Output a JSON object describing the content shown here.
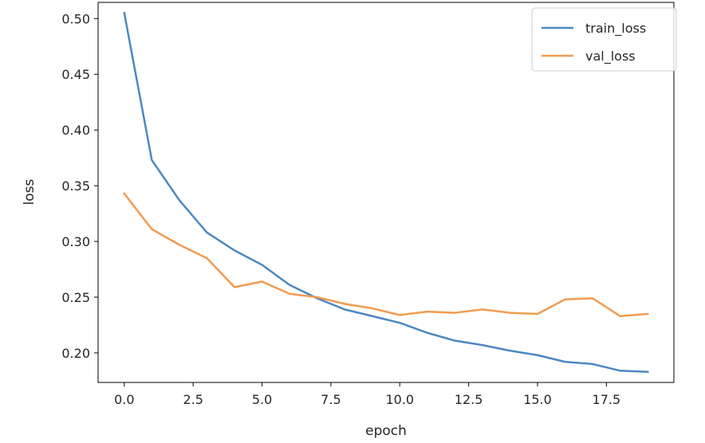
{
  "chart_data": {
    "type": "line",
    "xlabel": "epoch",
    "ylabel": "loss",
    "xlim": [
      -0.95,
      19.95
    ],
    "ylim": [
      0.1735,
      0.5145
    ],
    "xticks": [
      0.0,
      2.5,
      5.0,
      7.5,
      10.0,
      12.5,
      15.0,
      17.5
    ],
    "xtick_labels": [
      "0.0",
      "2.5",
      "5.0",
      "7.5",
      "10.0",
      "12.5",
      "15.0",
      "17.5"
    ],
    "yticks": [
      0.2,
      0.25,
      0.3,
      0.35,
      0.4,
      0.45,
      0.5
    ],
    "ytick_labels": [
      "0.20",
      "0.25",
      "0.30",
      "0.35",
      "0.40",
      "0.45",
      "0.50"
    ],
    "grid": false,
    "legend_position": "top-right",
    "x": [
      0,
      1,
      2,
      3,
      4,
      5,
      6,
      7,
      8,
      9,
      10,
      11,
      12,
      13,
      14,
      15,
      16,
      17,
      18,
      19
    ],
    "series": [
      {
        "name": "train_loss",
        "color": "#4c88c2",
        "values": [
          0.505,
          0.373,
          0.337,
          0.308,
          0.292,
          0.279,
          0.261,
          0.249,
          0.239,
          0.233,
          0.227,
          0.218,
          0.211,
          0.207,
          0.202,
          0.198,
          0.192,
          0.19,
          0.184,
          0.183
        ]
      },
      {
        "name": "val_loss",
        "color": "#f29b4f",
        "values": [
          0.343,
          0.311,
          0.297,
          0.285,
          0.259,
          0.264,
          0.253,
          0.25,
          0.244,
          0.24,
          0.234,
          0.237,
          0.236,
          0.239,
          0.236,
          0.235,
          0.248,
          0.249,
          0.233,
          0.235
        ]
      }
    ]
  }
}
